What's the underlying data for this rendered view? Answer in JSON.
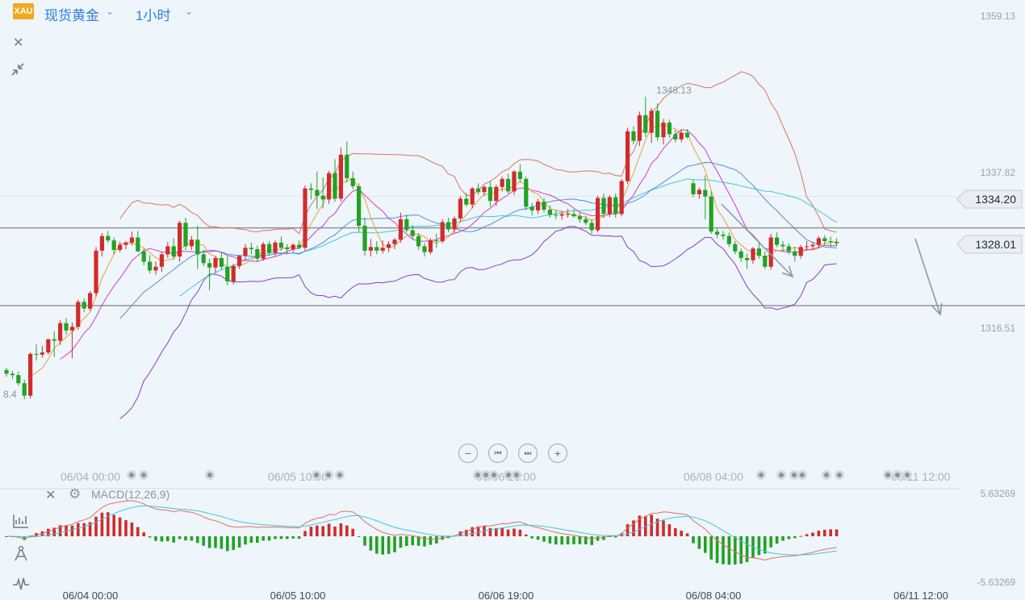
{
  "header": {
    "symbol_badge": "XAU",
    "symbol_name": "现货黄金",
    "period": "1小时"
  },
  "toolbar": {
    "close_icon": "close-icon",
    "collapse_icon": "collapse-icon"
  },
  "zoom": {
    "out": "−",
    "first": "⏮",
    "last": "⏭",
    "in": "+"
  },
  "macd": {
    "label": "MACD(12,26,9)"
  },
  "colors": {
    "up": "#d12b2b",
    "down": "#22a222",
    "bb_upper": "#d9745e",
    "bb_lower": "#8a3fc0",
    "ma_fast": "#e8a23a",
    "ma_mid": "#d43bc8",
    "ma_slow1": "#4f8fd6",
    "ma_slow2": "#40c8d8",
    "price_line": "#8c8c8c"
  },
  "chart_data": {
    "type": "candlestick",
    "price_ticks": [
      "1359.13",
      "1337.82",
      "1316.51"
    ],
    "macd_ticks": [
      "5.63269",
      "-5.63269"
    ],
    "price_tags": [
      "1334.20",
      "1328.01"
    ],
    "annotations": [
      "1348.13",
      "8.4"
    ],
    "x_labels_main": [
      "06/04 00:00",
      "06/05 10:00",
      "06/06 19:00",
      "06/08 04:00",
      "06/11 12:00"
    ],
    "x_labels_bottom": [
      "06/04 00:00",
      "06/05 10:00",
      "06/06 19:00",
      "06/08 04:00",
      "06/11 12:00"
    ],
    "horizontal_lines": [
      1328.01,
      1319.6
    ],
    "candles": [
      [
        1310.8,
        1311.1,
        1309.9,
        1310.3
      ],
      [
        1310.3,
        1310.7,
        1309.6,
        1310.1
      ],
      [
        1310.1,
        1310.6,
        1308.7,
        1309.0
      ],
      [
        1309.0,
        1309.5,
        1306.8,
        1307.3
      ],
      [
        1307.3,
        1313.2,
        1306.9,
        1313.0
      ],
      [
        1313.0,
        1314.3,
        1312.1,
        1312.9
      ],
      [
        1312.9,
        1314.1,
        1312.5,
        1313.2
      ],
      [
        1313.2,
        1315.1,
        1312.9,
        1315.0
      ],
      [
        1315.0,
        1316.1,
        1312.6,
        1314.8
      ],
      [
        1314.8,
        1317.6,
        1314.2,
        1317.2
      ],
      [
        1317.2,
        1317.9,
        1315.6,
        1316.2
      ],
      [
        1316.2,
        1317.3,
        1312.4,
        1316.7
      ],
      [
        1316.7,
        1320.4,
        1316.3,
        1320.1
      ],
      [
        1320.1,
        1320.6,
        1318.7,
        1319.2
      ],
      [
        1319.2,
        1321.6,
        1318.9,
        1321.3
      ],
      [
        1321.3,
        1327.6,
        1320.8,
        1327.1
      ],
      [
        1327.1,
        1329.5,
        1326.3,
        1329.1
      ],
      [
        1329.1,
        1329.8,
        1328.2,
        1328.5
      ],
      [
        1328.5,
        1328.9,
        1326.6,
        1327.2
      ],
      [
        1327.2,
        1328.3,
        1326.9,
        1327.9
      ],
      [
        1327.9,
        1328.4,
        1327.3,
        1328.2
      ],
      [
        1328.2,
        1329.7,
        1327.8,
        1328.9
      ],
      [
        1328.9,
        1329.8,
        1326.9,
        1327.0
      ],
      [
        1327.0,
        1327.4,
        1325.1,
        1325.6
      ],
      [
        1325.6,
        1326.5,
        1324.0,
        1324.4
      ],
      [
        1324.4,
        1325.6,
        1323.8,
        1324.9
      ],
      [
        1324.9,
        1326.9,
        1324.2,
        1326.6
      ],
      [
        1326.6,
        1328.3,
        1326.1,
        1327.7
      ],
      [
        1327.7,
        1328.8,
        1325.9,
        1326.3
      ],
      [
        1326.3,
        1331.2,
        1325.6,
        1330.9
      ],
      [
        1330.9,
        1331.6,
        1327.2,
        1327.7
      ],
      [
        1327.7,
        1329.1,
        1327.2,
        1328.6
      ],
      [
        1328.6,
        1330.5,
        1324.6,
        1326.6
      ],
      [
        1326.6,
        1327.2,
        1325.0,
        1325.4
      ],
      [
        1325.4,
        1326.0,
        1321.7,
        1324.8
      ],
      [
        1324.8,
        1326.4,
        1324.1,
        1326.1
      ],
      [
        1326.1,
        1326.9,
        1324.5,
        1324.9
      ],
      [
        1324.9,
        1326.3,
        1322.4,
        1322.9
      ],
      [
        1322.9,
        1325.3,
        1322.5,
        1325.0
      ],
      [
        1325.0,
        1326.5,
        1324.6,
        1326.4
      ],
      [
        1326.4,
        1328.0,
        1325.8,
        1327.5
      ],
      [
        1327.5,
        1328.2,
        1326.6,
        1327.3
      ],
      [
        1327.3,
        1327.8,
        1325.6,
        1326.0
      ],
      [
        1326.0,
        1328.3,
        1325.7,
        1328.0
      ],
      [
        1328.0,
        1328.4,
        1326.4,
        1326.8
      ],
      [
        1326.8,
        1328.5,
        1326.4,
        1328.2
      ],
      [
        1328.2,
        1329.0,
        1327.1,
        1327.5
      ],
      [
        1327.5,
        1328.0,
        1326.6,
        1327.3
      ],
      [
        1327.3,
        1328.1,
        1326.9,
        1327.9
      ],
      [
        1327.9,
        1328.5,
        1327.3,
        1327.5
      ],
      [
        1327.5,
        1336.0,
        1327.1,
        1335.6
      ],
      [
        1335.6,
        1336.3,
        1334.1,
        1335.4
      ],
      [
        1335.4,
        1337.9,
        1332.8,
        1334.6
      ],
      [
        1334.6,
        1337.1,
        1332.9,
        1334.1
      ],
      [
        1334.1,
        1338.0,
        1333.5,
        1337.7
      ],
      [
        1337.7,
        1339.6,
        1333.8,
        1334.2
      ],
      [
        1334.2,
        1341.2,
        1333.8,
        1340.2
      ],
      [
        1340.2,
        1342.0,
        1336.4,
        1337.0
      ],
      [
        1337.0,
        1337.9,
        1335.5,
        1335.9
      ],
      [
        1335.9,
        1336.3,
        1329.6,
        1330.5
      ],
      [
        1330.5,
        1331.6,
        1326.4,
        1327.1
      ],
      [
        1327.1,
        1328.7,
        1326.3,
        1327.6
      ],
      [
        1327.6,
        1328.4,
        1326.6,
        1327.1
      ],
      [
        1327.1,
        1328.5,
        1326.7,
        1327.5
      ],
      [
        1327.5,
        1328.4,
        1326.9,
        1328.0
      ],
      [
        1328.0,
        1328.8,
        1327.3,
        1328.6
      ],
      [
        1328.6,
        1332.3,
        1328.2,
        1331.4
      ],
      [
        1331.4,
        1332.0,
        1329.6,
        1329.9
      ],
      [
        1329.9,
        1330.6,
        1328.6,
        1329.1
      ],
      [
        1329.1,
        1329.5,
        1327.2,
        1327.7
      ],
      [
        1327.7,
        1328.1,
        1326.3,
        1326.9
      ],
      [
        1326.9,
        1328.8,
        1326.6,
        1328.5
      ],
      [
        1328.5,
        1329.4,
        1327.5,
        1328.4
      ],
      [
        1328.4,
        1331.4,
        1328.1,
        1331.0
      ],
      [
        1331.0,
        1331.6,
        1329.6,
        1330.0
      ],
      [
        1330.0,
        1331.8,
        1329.5,
        1331.5
      ],
      [
        1331.5,
        1334.6,
        1331.1,
        1334.2
      ],
      [
        1334.2,
        1335.0,
        1333.1,
        1333.4
      ],
      [
        1333.4,
        1335.8,
        1332.9,
        1335.6
      ],
      [
        1335.6,
        1336.3,
        1334.7,
        1335.1
      ],
      [
        1335.1,
        1336.0,
        1334.6,
        1335.8
      ],
      [
        1335.8,
        1336.6,
        1333.1,
        1333.9
      ],
      [
        1333.9,
        1336.1,
        1333.2,
        1335.8
      ],
      [
        1335.8,
        1337.2,
        1335.2,
        1336.9
      ],
      [
        1336.9,
        1337.6,
        1334.9,
        1335.2
      ],
      [
        1335.2,
        1338.1,
        1334.7,
        1337.9
      ],
      [
        1337.9,
        1338.9,
        1336.4,
        1336.9
      ],
      [
        1336.9,
        1337.2,
        1332.6,
        1333.1
      ],
      [
        1333.1,
        1333.6,
        1331.9,
        1332.6
      ],
      [
        1332.6,
        1334.2,
        1332.1,
        1333.8
      ],
      [
        1333.8,
        1334.3,
        1332.3,
        1332.7
      ],
      [
        1332.7,
        1333.3,
        1331.6,
        1332.0
      ],
      [
        1332.0,
        1332.7,
        1331.4,
        1331.9
      ],
      [
        1331.9,
        1332.5,
        1331.3,
        1332.1
      ],
      [
        1332.1,
        1332.8,
        1331.6,
        1332.1
      ],
      [
        1332.1,
        1332.7,
        1331.6,
        1331.8
      ],
      [
        1331.8,
        1332.3,
        1330.9,
        1331.4
      ],
      [
        1331.4,
        1331.9,
        1330.6,
        1330.9
      ],
      [
        1330.9,
        1331.4,
        1329.4,
        1329.9
      ],
      [
        1329.9,
        1334.6,
        1329.6,
        1334.3
      ],
      [
        1334.3,
        1334.9,
        1331.6,
        1332.1
      ],
      [
        1332.1,
        1334.7,
        1331.7,
        1334.4
      ],
      [
        1334.4,
        1334.9,
        1331.6,
        1332.1
      ],
      [
        1332.1,
        1336.9,
        1331.8,
        1336.6
      ],
      [
        1336.6,
        1343.9,
        1336.2,
        1343.4
      ],
      [
        1343.4,
        1344.1,
        1341.6,
        1342.1
      ],
      [
        1342.1,
        1346.1,
        1341.4,
        1345.6
      ],
      [
        1345.6,
        1348.13,
        1342.6,
        1343.2
      ],
      [
        1343.2,
        1346.6,
        1341.8,
        1346.2
      ],
      [
        1346.2,
        1347.2,
        1342.1,
        1342.6
      ],
      [
        1342.6,
        1345.1,
        1341.6,
        1344.6
      ],
      [
        1344.6,
        1345.0,
        1342.5,
        1343.0
      ],
      [
        1343.0,
        1343.6,
        1341.9,
        1342.3
      ],
      [
        1342.3,
        1343.6,
        1341.9,
        1343.2
      ],
      [
        1343.2,
        1343.7,
        1342.4,
        1342.6
      ],
      [
        1336.3,
        1336.8,
        1334.4,
        1334.8
      ],
      [
        1334.8,
        1335.7,
        1334.2,
        1335.4
      ],
      [
        1335.4,
        1337.4,
        1331.4,
        1334.5
      ],
      [
        1334.5,
        1335.2,
        1329.4,
        1329.7
      ],
      [
        1329.7,
        1330.2,
        1328.8,
        1329.3
      ],
      [
        1329.3,
        1329.8,
        1328.6,
        1329.1
      ],
      [
        1329.1,
        1329.6,
        1327.6,
        1328.0
      ],
      [
        1328.0,
        1328.4,
        1326.6,
        1327.0
      ],
      [
        1327.0,
        1327.4,
        1325.6,
        1326.1
      ],
      [
        1326.1,
        1326.7,
        1324.6,
        1325.8
      ],
      [
        1325.8,
        1327.6,
        1325.3,
        1327.4
      ],
      [
        1327.4,
        1328.2,
        1326.0,
        1326.4
      ],
      [
        1326.4,
        1327.0,
        1324.6,
        1324.9
      ],
      [
        1324.9,
        1329.4,
        1324.5,
        1328.9
      ],
      [
        1328.9,
        1329.6,
        1327.6,
        1327.9
      ],
      [
        1327.9,
        1328.4,
        1327.0,
        1327.7
      ],
      [
        1327.7,
        1328.1,
        1326.6,
        1327.0
      ],
      [
        1327.0,
        1327.6,
        1325.6,
        1326.4
      ],
      [
        1326.4,
        1327.9,
        1326.0,
        1327.6
      ],
      [
        1327.6,
        1328.4,
        1327.1,
        1327.7
      ],
      [
        1327.7,
        1328.3,
        1327.2,
        1327.9
      ],
      [
        1327.9,
        1329.1,
        1327.5,
        1328.8
      ],
      [
        1328.8,
        1329.2,
        1327.9,
        1328.4
      ],
      [
        1328.4,
        1329.0,
        1327.6,
        1328.3
      ],
      [
        1328.3,
        1328.8,
        1327.7,
        1328.1
      ]
    ]
  }
}
